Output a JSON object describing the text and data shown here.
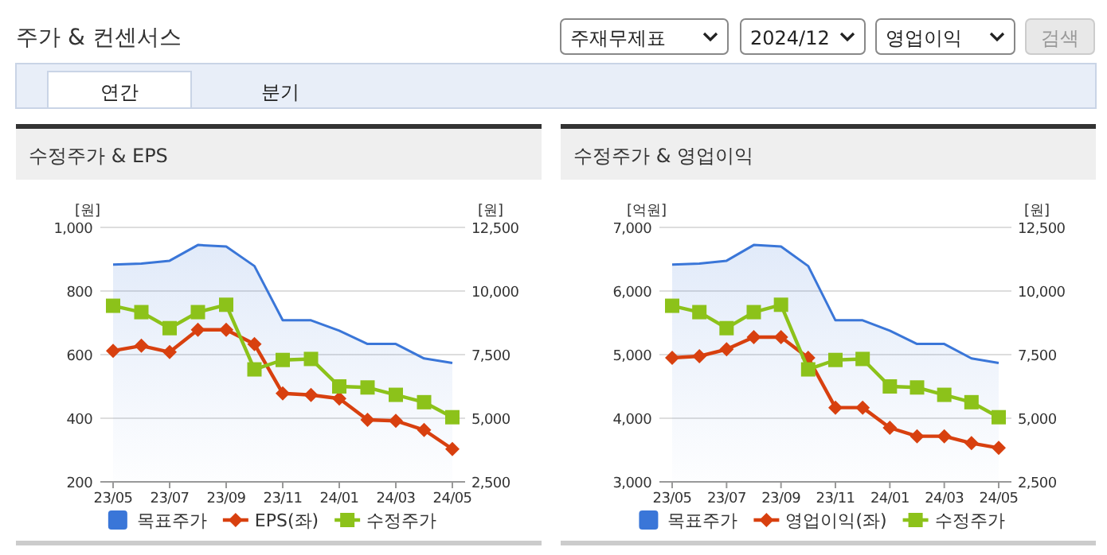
{
  "chart_data": [
    {
      "type": "other",
      "title": "주가 & 컨센서스",
      "annotations": [
        "주재무제표",
        "2024/12",
        "영업이익",
        "검색",
        "연간",
        "분기"
      ]
    },
    {
      "type": "line",
      "title": "수정주가 & EPS",
      "ylabel": "[원]",
      "y2label": "[원]",
      "categories": [
        "23/05",
        null,
        "23/07",
        null,
        "23/09",
        null,
        "23/11",
        null,
        "24/01",
        null,
        "24/03",
        null,
        "24/05"
      ],
      "ylim": [
        200,
        1000
      ],
      "yticks": [
        200,
        400,
        600,
        800,
        {
          "value": 1000,
          "label": "1,000"
        }
      ],
      "y2lim": [
        2500,
        12500
      ],
      "y2ticks": [
        {
          "value": 2500,
          "label": "2,500"
        },
        {
          "value": 5000,
          "label": "5,000"
        },
        {
          "value": 7500,
          "label": "7,500"
        },
        {
          "value": 10000,
          "label": "10,000"
        },
        {
          "value": 12500,
          "label": "12,500"
        }
      ],
      "grid": "y",
      "legend": "bottom",
      "series": [
        {
          "name": "목표주가",
          "type": "area",
          "axis": "y2",
          "color": "#3a76d8",
          "marker": "none",
          "values": [
            11040,
            11080,
            11190,
            11810,
            11750,
            10980,
            8850,
            8850,
            8440,
            7920,
            7920,
            7350,
            7170
          ]
        },
        {
          "name": "EPS(좌)",
          "type": "line",
          "color": "#d8400f",
          "marker": "diamond",
          "values": [
            612,
            628,
            608,
            678,
            678,
            633,
            478,
            473,
            462,
            395,
            392,
            363,
            303
          ]
        },
        {
          "name": "수정주가",
          "type": "line",
          "axis": "y2",
          "color": "#8cc21a",
          "marker": "square",
          "values": [
            9420,
            9170,
            8540,
            9170,
            9460,
            6920,
            7290,
            7330,
            6250,
            6210,
            5920,
            5630,
            5040
          ]
        }
      ]
    },
    {
      "type": "line",
      "title": "수정주가 & 영업이익",
      "ylabel": "[억원]",
      "y2label": "[원]",
      "categories": [
        "23/05",
        null,
        "23/07",
        null,
        "23/09",
        null,
        "23/11",
        null,
        "24/01",
        null,
        "24/03",
        null,
        "24/05"
      ],
      "ylim": [
        3000,
        7000
      ],
      "yticks": [
        {
          "value": 3000,
          "label": "3,000"
        },
        {
          "value": 4000,
          "label": "4,000"
        },
        {
          "value": 5000,
          "label": "5,000"
        },
        {
          "value": 6000,
          "label": "6,000"
        },
        {
          "value": 7000,
          "label": "7,000"
        }
      ],
      "y2lim": [
        2500,
        12500
      ],
      "y2ticks": [
        {
          "value": 2500,
          "label": "2,500"
        },
        {
          "value": 5000,
          "label": "5,000"
        },
        {
          "value": 7500,
          "label": "7,500"
        },
        {
          "value": 10000,
          "label": "10,000"
        },
        {
          "value": 12500,
          "label": "12,500"
        }
      ],
      "grid": "y",
      "legend": "bottom",
      "series": [
        {
          "name": "목표주가",
          "type": "area",
          "axis": "y2",
          "color": "#3a76d8",
          "marker": "none",
          "values": [
            11040,
            11080,
            11190,
            11810,
            11750,
            10980,
            8850,
            8850,
            8440,
            7920,
            7920,
            7350,
            7170
          ]
        },
        {
          "name": "영업이익(좌)",
          "type": "line",
          "color": "#d8400f",
          "marker": "diamond",
          "values": [
            4950,
            4975,
            5083,
            5275,
            5275,
            4950,
            4167,
            4167,
            3850,
            3717,
            3717,
            3608,
            3533
          ]
        },
        {
          "name": "수정주가",
          "type": "line",
          "axis": "y2",
          "color": "#8cc21a",
          "marker": "square",
          "values": [
            9420,
            9170,
            8540,
            9170,
            9460,
            6920,
            7290,
            7330,
            6250,
            6210,
            5920,
            5630,
            5040
          ]
        }
      ]
    }
  ]
}
